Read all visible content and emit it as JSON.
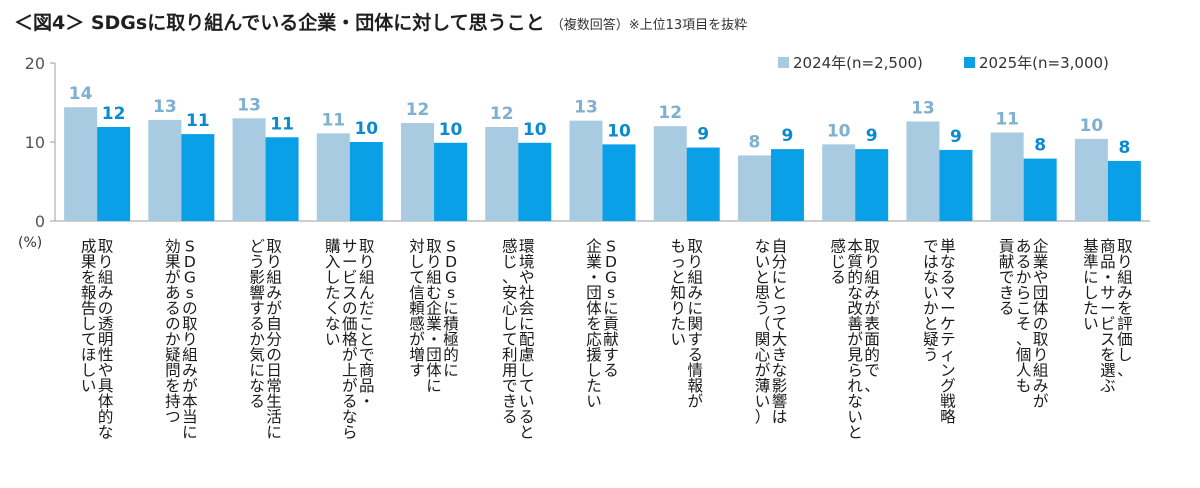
{
  "header": {
    "title": "＜図4＞ SDGsに取り組んでいる企業・団体に対して思うこと",
    "subtitle": "（複数回答）※上位13項目を抜粋"
  },
  "colors": {
    "series_2024": "#a9cbe2",
    "series_2025": "#0aa0e8",
    "value_2024": "#7fb0cf",
    "value_2025": "#0a8ad0",
    "axis": "#9e9e9e"
  },
  "chart_data": {
    "type": "bar",
    "title": "＜図4＞ SDGsに取り組んでいる企業・団体に対して思うこと",
    "ylabel": "(%)",
    "ylim": [
      0,
      20
    ],
    "yticks": [
      0,
      10,
      20
    ],
    "legend_position": "top-right",
    "grid": false,
    "categories": [
      [
        "取り組みの透明性や具体的な",
        "成果を報告してほしい"
      ],
      [
        "SDGsの取り組みが本当に",
        "効果があるのか疑問を持つ"
      ],
      [
        "取り組みが自分の日常生活に",
        "どう影響するか気になる"
      ],
      [
        "取り組んだことで商品・",
        "サービスの価格が上がるなら",
        "購入したくない"
      ],
      [
        "SDGsに積極的に",
        "取り組む企業・団体に",
        "対して信頼感が増す"
      ],
      [
        "環境や社会に配慮していると",
        "感じ、安心して利用できる"
      ],
      [
        "SDGsに貢献する",
        "企業・団体を応援したい"
      ],
      [
        "取り組みに関する情報が",
        "もっと知りたい"
      ],
      [
        "自分にとって大きな影響は",
        "ないと思う（関心が薄い）"
      ],
      [
        "取り組みが表面的で、",
        "本質的な改善が見られないと",
        "感じる"
      ],
      [
        "単なるマーケティング戦略",
        "ではないかと疑う"
      ],
      [
        "企業や団体の取り組みが",
        "あるからこそ、個人も",
        "貢献できる"
      ],
      [
        "取り組みを評価し、",
        "商品・サービスを選ぶ",
        "基準にしたい"
      ]
    ],
    "series": [
      {
        "name": "2024年(n=2,500)",
        "values": [
          14.4,
          12.8,
          13.0,
          11.1,
          12.4,
          11.9,
          12.7,
          12.0,
          8.3,
          9.7,
          12.6,
          11.2,
          10.4
        ],
        "labels": [
          "14",
          "13",
          "13",
          "11",
          "12",
          "12",
          "13",
          "12",
          "8",
          "10",
          "13",
          "11",
          "10"
        ]
      },
      {
        "name": "2025年(n=3,000)",
        "values": [
          11.9,
          11.0,
          10.6,
          10.0,
          9.9,
          9.9,
          9.7,
          9.3,
          9.1,
          9.1,
          9.0,
          7.9,
          7.6
        ],
        "labels": [
          "12",
          "11",
          "11",
          "10",
          "10",
          "10",
          "10",
          "9",
          "9",
          "9",
          "9",
          "8",
          "8"
        ]
      }
    ]
  }
}
